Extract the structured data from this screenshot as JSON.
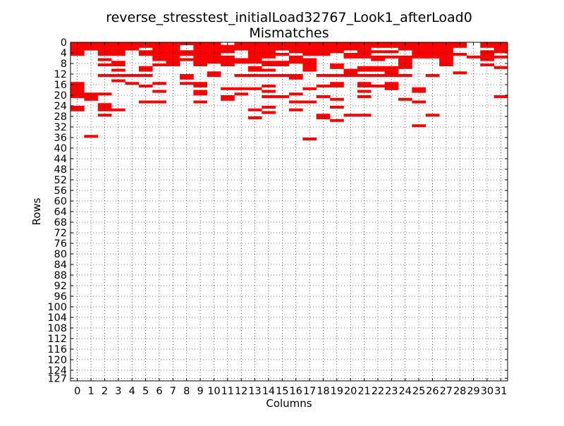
{
  "chart_data": {
    "type": "heatmap",
    "title_lines": [
      "reverse_stresstest_initialLoad32767_Look1_afterLoad0",
      "Mismatches"
    ],
    "xlabel": "Columns",
    "ylabel": "Rows",
    "x_ticks": [
      "0",
      "1",
      "2",
      "3",
      "4",
      "5",
      "6",
      "7",
      "8",
      "9",
      "10",
      "11",
      "12",
      "13",
      "14",
      "15",
      "16",
      "17",
      "18",
      "19",
      "20",
      "21",
      "22",
      "23",
      "24",
      "25",
      "26",
      "27",
      "28",
      "29",
      "30",
      "31"
    ],
    "y_ticks": [
      "0",
      "4",
      "8",
      "12",
      "16",
      "20",
      "24",
      "28",
      "32",
      "36",
      "40",
      "44",
      "48",
      "52",
      "56",
      "60",
      "64",
      "68",
      "72",
      "76",
      "80",
      "84",
      "88",
      "92",
      "96",
      "100",
      "104",
      "108",
      "112",
      "116",
      "120",
      "124",
      "127"
    ],
    "x_range": [
      0,
      32
    ],
    "y_range": [
      0,
      128
    ],
    "y_inverted": true,
    "grid": true,
    "mismatch_color": "#ff0000",
    "mismatch_cells": [
      [
        0,
        0
      ],
      [
        0,
        1
      ],
      [
        0,
        2
      ],
      [
        0,
        3
      ],
      [
        0,
        4
      ],
      [
        0,
        15
      ],
      [
        0,
        16
      ],
      [
        0,
        17
      ],
      [
        0,
        18
      ],
      [
        0,
        19
      ],
      [
        0,
        20
      ],
      [
        0,
        24
      ],
      [
        0,
        25
      ],
      [
        1,
        0
      ],
      [
        1,
        1
      ],
      [
        1,
        2
      ],
      [
        1,
        19
      ],
      [
        1,
        20
      ],
      [
        1,
        21
      ],
      [
        1,
        35
      ],
      [
        2,
        0
      ],
      [
        2,
        1
      ],
      [
        2,
        2
      ],
      [
        2,
        3
      ],
      [
        2,
        4
      ],
      [
        2,
        6
      ],
      [
        2,
        8
      ],
      [
        2,
        12
      ],
      [
        2,
        19
      ],
      [
        2,
        23
      ],
      [
        2,
        24
      ],
      [
        2,
        25
      ],
      [
        2,
        27
      ],
      [
        3,
        0
      ],
      [
        3,
        1
      ],
      [
        3,
        2
      ],
      [
        3,
        3
      ],
      [
        3,
        4
      ],
      [
        3,
        7
      ],
      [
        3,
        8
      ],
      [
        3,
        10
      ],
      [
        3,
        12
      ],
      [
        3,
        14
      ],
      [
        3,
        25
      ],
      [
        4,
        0
      ],
      [
        4,
        1
      ],
      [
        4,
        2
      ],
      [
        4,
        12
      ],
      [
        4,
        15
      ],
      [
        5,
        0
      ],
      [
        5,
        1
      ],
      [
        5,
        3
      ],
      [
        5,
        4
      ],
      [
        5,
        9
      ],
      [
        5,
        10
      ],
      [
        5,
        12
      ],
      [
        5,
        16
      ],
      [
        5,
        22
      ],
      [
        6,
        0
      ],
      [
        6,
        1
      ],
      [
        6,
        2
      ],
      [
        6,
        3
      ],
      [
        6,
        4
      ],
      [
        6,
        5
      ],
      [
        6,
        6
      ],
      [
        6,
        8
      ],
      [
        6,
        15
      ],
      [
        6,
        18
      ],
      [
        6,
        22
      ],
      [
        7,
        0
      ],
      [
        7,
        1
      ],
      [
        7,
        2
      ],
      [
        7,
        3
      ],
      [
        7,
        4
      ],
      [
        7,
        5
      ],
      [
        7,
        6
      ],
      [
        7,
        7
      ],
      [
        7,
        8
      ],
      [
        8,
        0
      ],
      [
        8,
        3
      ],
      [
        8,
        4
      ],
      [
        8,
        6
      ],
      [
        8,
        12
      ],
      [
        8,
        13
      ],
      [
        8,
        15
      ],
      [
        9,
        0
      ],
      [
        9,
        1
      ],
      [
        9,
        2
      ],
      [
        9,
        3
      ],
      [
        9,
        4
      ],
      [
        9,
        5
      ],
      [
        9,
        6
      ],
      [
        9,
        7
      ],
      [
        9,
        8
      ],
      [
        9,
        15
      ],
      [
        9,
        16
      ],
      [
        9,
        18
      ],
      [
        9,
        19
      ],
      [
        9,
        22
      ],
      [
        10,
        0
      ],
      [
        10,
        1
      ],
      [
        10,
        2
      ],
      [
        10,
        3
      ],
      [
        10,
        4
      ],
      [
        10,
        5
      ],
      [
        10,
        6
      ],
      [
        10,
        7
      ],
      [
        10,
        11
      ],
      [
        10,
        12
      ],
      [
        11,
        1
      ],
      [
        11,
        2
      ],
      [
        11,
        3
      ],
      [
        11,
        5
      ],
      [
        11,
        6
      ],
      [
        11,
        7
      ],
      [
        11,
        8
      ],
      [
        11,
        17
      ],
      [
        11,
        20
      ],
      [
        11,
        21
      ],
      [
        12,
        0
      ],
      [
        12,
        1
      ],
      [
        12,
        2
      ],
      [
        12,
        6
      ],
      [
        12,
        7
      ],
      [
        12,
        12
      ],
      [
        12,
        17
      ],
      [
        12,
        19
      ],
      [
        13,
        0
      ],
      [
        13,
        1
      ],
      [
        13,
        2
      ],
      [
        13,
        3
      ],
      [
        13,
        4
      ],
      [
        13,
        5
      ],
      [
        13,
        6
      ],
      [
        13,
        7
      ],
      [
        13,
        9
      ],
      [
        13,
        10
      ],
      [
        13,
        12
      ],
      [
        13,
        17
      ],
      [
        13,
        25
      ],
      [
        13,
        28
      ],
      [
        14,
        0
      ],
      [
        14,
        1
      ],
      [
        14,
        2
      ],
      [
        14,
        3
      ],
      [
        14,
        4
      ],
      [
        14,
        5
      ],
      [
        14,
        7
      ],
      [
        14,
        8
      ],
      [
        14,
        10
      ],
      [
        14,
        12
      ],
      [
        14,
        16
      ],
      [
        14,
        18
      ],
      [
        14,
        20
      ],
      [
        14,
        24
      ],
      [
        14,
        26
      ],
      [
        15,
        0
      ],
      [
        15,
        1
      ],
      [
        15,
        2
      ],
      [
        15,
        4
      ],
      [
        15,
        7
      ],
      [
        15,
        8
      ],
      [
        15,
        12
      ],
      [
        15,
        20
      ],
      [
        16,
        0
      ],
      [
        16,
        1
      ],
      [
        16,
        2
      ],
      [
        16,
        3
      ],
      [
        16,
        5
      ],
      [
        16,
        6
      ],
      [
        16,
        7
      ],
      [
        16,
        12
      ],
      [
        16,
        13
      ],
      [
        16,
        19
      ],
      [
        16,
        22
      ],
      [
        16,
        25
      ],
      [
        17,
        0
      ],
      [
        17,
        1
      ],
      [
        17,
        2
      ],
      [
        17,
        3
      ],
      [
        17,
        4
      ],
      [
        17,
        6
      ],
      [
        17,
        7
      ],
      [
        17,
        8
      ],
      [
        17,
        9
      ],
      [
        17,
        10
      ],
      [
        17,
        17
      ],
      [
        17,
        22
      ],
      [
        17,
        36
      ],
      [
        18,
        0
      ],
      [
        18,
        1
      ],
      [
        18,
        2
      ],
      [
        18,
        3
      ],
      [
        18,
        4
      ],
      [
        18,
        12
      ],
      [
        18,
        16
      ],
      [
        18,
        20
      ],
      [
        18,
        27
      ],
      [
        18,
        28
      ],
      [
        19,
        0
      ],
      [
        19,
        1
      ],
      [
        19,
        2
      ],
      [
        19,
        3
      ],
      [
        19,
        8
      ],
      [
        19,
        9
      ],
      [
        19,
        12
      ],
      [
        19,
        15
      ],
      [
        19,
        16
      ],
      [
        19,
        21
      ],
      [
        19,
        24
      ],
      [
        19,
        29
      ],
      [
        20,
        0
      ],
      [
        20,
        1
      ],
      [
        20,
        2
      ],
      [
        20,
        4
      ],
      [
        20,
        5
      ],
      [
        20,
        10
      ],
      [
        20,
        11
      ],
      [
        20,
        12
      ],
      [
        20,
        27
      ],
      [
        21,
        0
      ],
      [
        21,
        1
      ],
      [
        21,
        2
      ],
      [
        21,
        3
      ],
      [
        21,
        4
      ],
      [
        21,
        5
      ],
      [
        21,
        9
      ],
      [
        21,
        10
      ],
      [
        21,
        12
      ],
      [
        21,
        15
      ],
      [
        21,
        16
      ],
      [
        21,
        18
      ],
      [
        21,
        20
      ],
      [
        21,
        27
      ],
      [
        22,
        0
      ],
      [
        22,
        1
      ],
      [
        22,
        3
      ],
      [
        22,
        5
      ],
      [
        22,
        6
      ],
      [
        22,
        9
      ],
      [
        22,
        10
      ],
      [
        22,
        12
      ],
      [
        22,
        16
      ],
      [
        23,
        0
      ],
      [
        23,
        1
      ],
      [
        23,
        3
      ],
      [
        23,
        5
      ],
      [
        23,
        9
      ],
      [
        23,
        10
      ],
      [
        23,
        11
      ],
      [
        23,
        12
      ],
      [
        23,
        15
      ],
      [
        23,
        16
      ],
      [
        23,
        17
      ],
      [
        24,
        0
      ],
      [
        24,
        1
      ],
      [
        24,
        2
      ],
      [
        24,
        5
      ],
      [
        24,
        6
      ],
      [
        24,
        7
      ],
      [
        24,
        8
      ],
      [
        24,
        9
      ],
      [
        24,
        12
      ],
      [
        24,
        21
      ],
      [
        25,
        0
      ],
      [
        25,
        1
      ],
      [
        25,
        2
      ],
      [
        25,
        3
      ],
      [
        25,
        4
      ],
      [
        25,
        5
      ],
      [
        25,
        17
      ],
      [
        25,
        18
      ],
      [
        25,
        22
      ],
      [
        25,
        31
      ],
      [
        26,
        0
      ],
      [
        26,
        1
      ],
      [
        26,
        2
      ],
      [
        26,
        3
      ],
      [
        26,
        4
      ],
      [
        26,
        5
      ],
      [
        26,
        12
      ],
      [
        26,
        27
      ],
      [
        27,
        0
      ],
      [
        27,
        1
      ],
      [
        27,
        2
      ],
      [
        27,
        3
      ],
      [
        27,
        4
      ],
      [
        27,
        5
      ],
      [
        27,
        6
      ],
      [
        27,
        7
      ],
      [
        27,
        8
      ],
      [
        28,
        0
      ],
      [
        28,
        1
      ],
      [
        28,
        4
      ],
      [
        28,
        11
      ],
      [
        29,
        5
      ],
      [
        30,
        0
      ],
      [
        30,
        1
      ],
      [
        30,
        3
      ],
      [
        30,
        4
      ],
      [
        30,
        5
      ],
      [
        30,
        6
      ],
      [
        30,
        8
      ],
      [
        31,
        0
      ],
      [
        31,
        1
      ],
      [
        31,
        2
      ],
      [
        31,
        3
      ],
      [
        31,
        5
      ],
      [
        31,
        9
      ],
      [
        31,
        20
      ]
    ]
  }
}
